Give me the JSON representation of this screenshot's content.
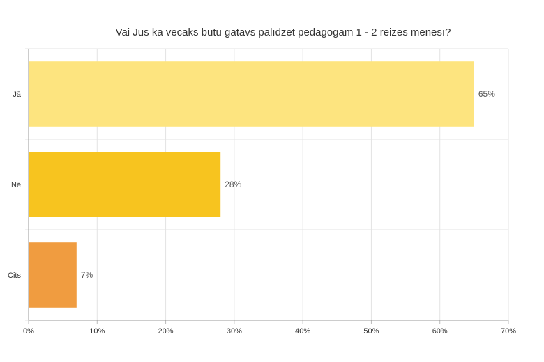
{
  "chart_data": {
    "type": "bar",
    "orientation": "horizontal",
    "title": "Vai Jūs kā vecāks būtu gatavs palīdzēt pedagogam 1 - 2 reizes mēnesī?",
    "categories": [
      "Jā",
      "Nē",
      "Cits"
    ],
    "values": [
      65,
      28,
      7
    ],
    "value_labels": [
      "65%",
      "28%",
      "7%"
    ],
    "colors": [
      "#fde47f",
      "#f7c41f",
      "#f09c40"
    ],
    "xlim": [
      0,
      70
    ],
    "xticks": [
      0,
      10,
      20,
      30,
      40,
      50,
      60,
      70
    ],
    "xtick_labels": [
      "0%",
      "10%",
      "20%",
      "30%",
      "40%",
      "50%",
      "60%",
      "70%"
    ],
    "xlabel": "",
    "ylabel": "",
    "grid": true,
    "legend": "none"
  }
}
